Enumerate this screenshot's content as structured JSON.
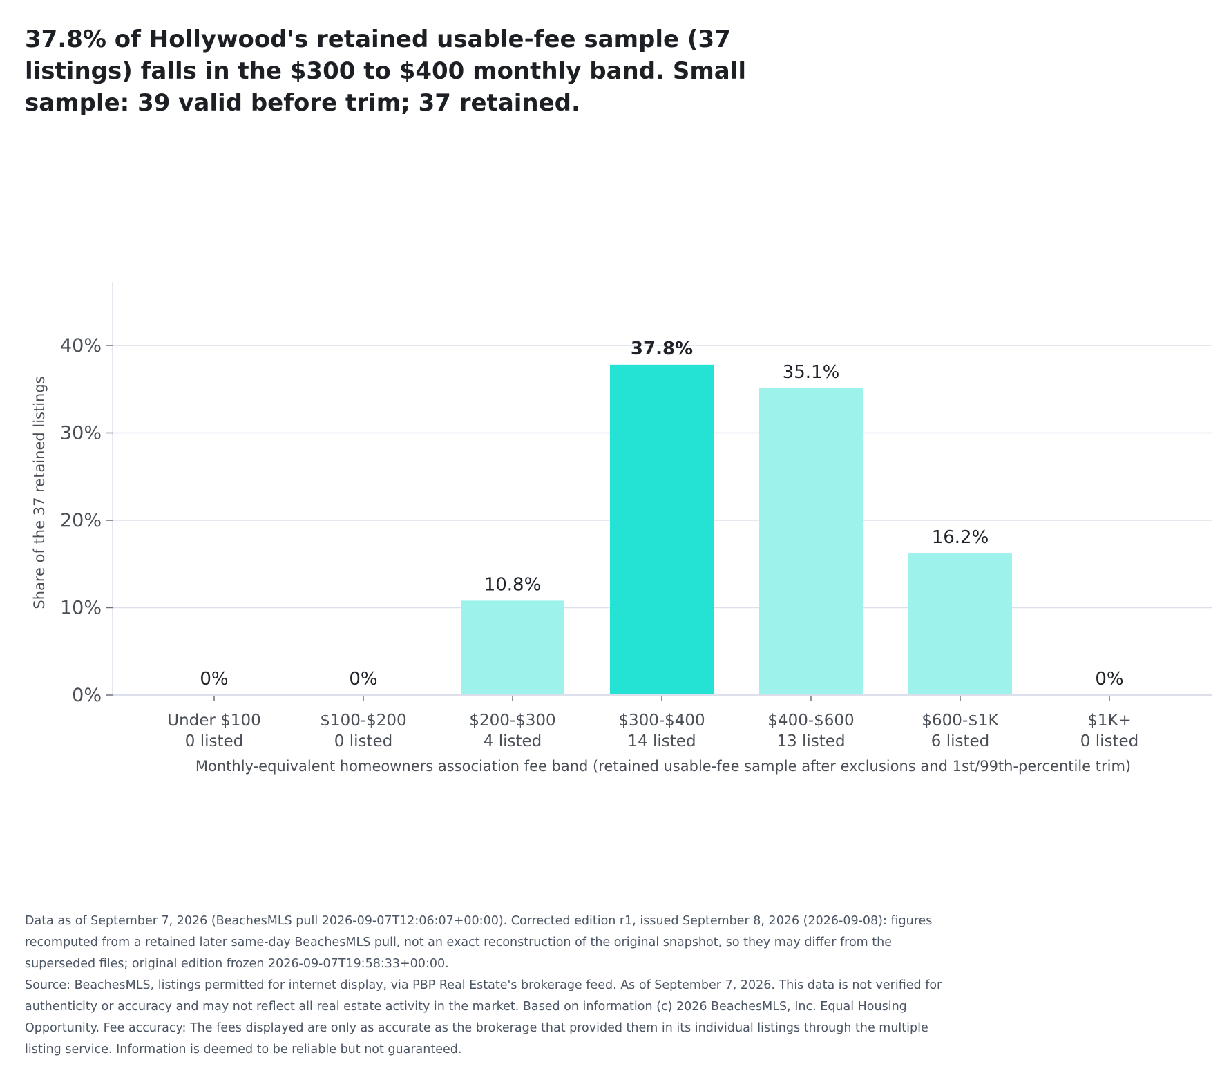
{
  "headline": "37.8% of Hollywood's retained usable-fee sample (37 listings) falls in the $300 to $400 monthly band. Small sample: 39 valid before trim; 37 retained.",
  "colors": {
    "highlight_bar": "#25e3d4",
    "bar": "#9ef2ec",
    "grid": "#dde0ea",
    "axis_text": "#4a4f57",
    "label_text": "#1f2329"
  },
  "chart_data": {
    "type": "bar",
    "categories": [
      "Under $100",
      "$100-$200",
      "$200-$300",
      "$300-$400",
      "$400-$600",
      "$600-$1K",
      "$1K+"
    ],
    "counts_labels": [
      "0 listed",
      "0 listed",
      "4 listed",
      "14 listed",
      "13 listed",
      "6 listed",
      "0 listed"
    ],
    "values": [
      0,
      0,
      10.8,
      37.8,
      35.1,
      16.2,
      0
    ],
    "value_labels": [
      "0%",
      "0%",
      "10.8%",
      "37.8%",
      "35.1%",
      "16.2%",
      "0%"
    ],
    "highlight_index": 3,
    "ylim": [
      0,
      47.5
    ],
    "yticks": [
      0,
      10,
      20,
      30,
      40
    ],
    "ytick_labels": [
      "0%",
      "10%",
      "20%",
      "30%",
      "40%"
    ],
    "ylabel": "Share of the 37 retained listings",
    "xlabel": "Monthly-equivalent homeowners association fee band (retained usable-fee sample after exclusions and 1st/99th-percentile trim)",
    "grid": true
  },
  "footer": {
    "data_note": "Data as of September 7, 2026 (BeachesMLS pull 2026-09-07T12:06:07+00:00). Corrected edition r1, issued September 8, 2026 (2026-09-08): figures recomputed from a retained later same-day BeachesMLS pull, not an exact reconstruction of the original snapshot, so they may differ from the superseded files; original edition frozen 2026-09-07T19:58:33+00:00.",
    "source_note": "Source: BeachesMLS, listings permitted for internet display, via PBP Real Estate's brokerage feed. As of September 7, 2026. This data is not verified for authenticity or accuracy and may not reflect all real estate activity in the market. Based on information (c) 2026 BeachesMLS, Inc. Equal Housing Opportunity. Fee accuracy: The fees displayed are only as accurate as the brokerage that provided them in its individual listings through the multiple listing service. Information is deemed to be reliable but not guaranteed."
  }
}
